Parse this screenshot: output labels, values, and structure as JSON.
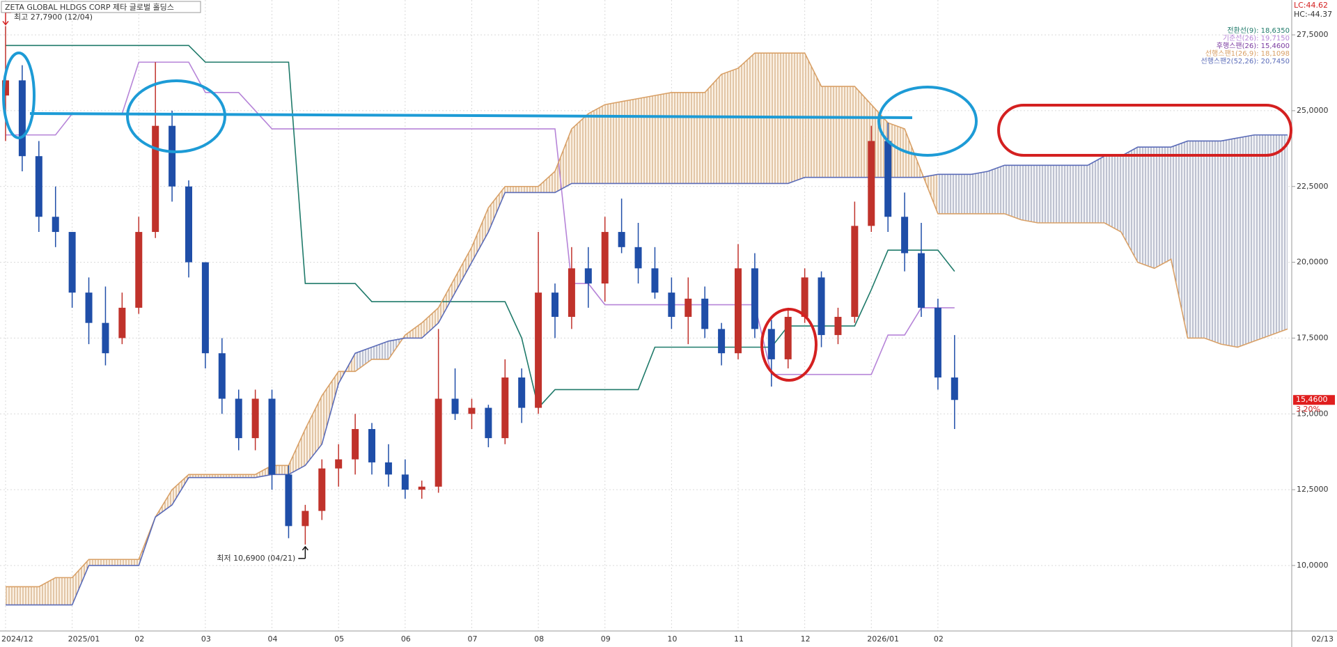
{
  "chart_data": {
    "type": "candlestick",
    "title": "ZETA GLOBAL HLDGS CORP  제타 글로벌 홀딩스",
    "high_label": "최고 27,7900 (12/04)",
    "low_label": "최저 10,6900 (04/21)",
    "lc_label": "LC:44.62",
    "hc_label": "HC:-44.37",
    "lagging_label": "후행스팬(26): 15,4600",
    "last_price": {
      "value": 15.46,
      "label": "15,4600"
    },
    "change_label": "3.20%",
    "up_color": "#c0322b",
    "down_color": "#1f4ea8",
    "grid": true,
    "categories": [
      "2024/12",
      null,
      null,
      null,
      "2025/01",
      null,
      null,
      null,
      "02",
      null,
      null,
      null,
      "03",
      null,
      null,
      null,
      "04",
      null,
      null,
      null,
      "05",
      null,
      null,
      null,
      "06",
      null,
      null,
      null,
      "07",
      null,
      null,
      null,
      "08",
      null,
      null,
      null,
      "09",
      null,
      null,
      null,
      "10",
      null,
      null,
      null,
      "11",
      null,
      null,
      null,
      "12",
      null,
      null,
      null,
      "2026/01",
      null,
      null,
      null,
      "02",
      null,
      null,
      null,
      null,
      null,
      null,
      null,
      null,
      null,
      null,
      null,
      null,
      null,
      null,
      null,
      null,
      null,
      null,
      null,
      null,
      "02/13"
    ],
    "ohlc": {
      "open": [
        25.5,
        26,
        23.5,
        21.5,
        21,
        19,
        18,
        17.5,
        18.5,
        21,
        24.5,
        22.5,
        20,
        17,
        15.5,
        14.2,
        15.5,
        13,
        11.3,
        11.8,
        13.2,
        13.5,
        14.5,
        13.4,
        13,
        12.5,
        12.6,
        15.5,
        15,
        15.2,
        14.2,
        16.2,
        15.2,
        19,
        18.2,
        19.8,
        19.3,
        21,
        20.5,
        19.8,
        19,
        18.2,
        18.8,
        17.8,
        17,
        19.8,
        17.8,
        16.8,
        18.2,
        19.5,
        17.6,
        18.2,
        21.2,
        24,
        21.5,
        20.3,
        18.5,
        16.2,
        null,
        null,
        null,
        null,
        null,
        null,
        null,
        null,
        null,
        null,
        null,
        null,
        null,
        null,
        null,
        null,
        null,
        null,
        null,
        null
      ],
      "high": [
        27.79,
        26.5,
        24,
        22.5,
        21,
        19.5,
        19.2,
        19,
        21.5,
        26.6,
        25,
        22.7,
        20,
        17.5,
        15.8,
        15.8,
        15.8,
        13.3,
        12,
        13.5,
        14,
        15,
        14.7,
        14,
        13.5,
        12.8,
        17.8,
        16.5,
        15.5,
        15.3,
        16.8,
        16.5,
        21,
        19.3,
        20.5,
        20.5,
        21.5,
        22.1,
        21.3,
        20.5,
        19.5,
        19.5,
        19.2,
        18,
        20.6,
        20.3,
        18.1,
        18.5,
        19.8,
        19.7,
        18.5,
        22,
        24.5,
        24.6,
        22.3,
        21.3,
        18.8,
        17.6,
        null,
        null,
        null,
        null,
        null,
        null,
        null,
        null,
        null,
        null,
        null,
        null,
        null,
        null,
        null,
        null,
        null,
        null,
        null,
        null
      ],
      "low": [
        24,
        23,
        21,
        20.5,
        18.5,
        17.3,
        16.6,
        17.3,
        18.3,
        20.8,
        22,
        19.5,
        16.5,
        15,
        13.8,
        13.8,
        12.5,
        10.9,
        10.69,
        11.5,
        12.6,
        13,
        13,
        12.6,
        12.2,
        12.2,
        12.4,
        14.8,
        14.5,
        13.9,
        14,
        14.7,
        15,
        17.5,
        17.8,
        18.5,
        18.7,
        20.3,
        19.3,
        18.8,
        17.8,
        17.3,
        17.5,
        16.6,
        16.8,
        17.5,
        15.9,
        16.5,
        18,
        17.2,
        17.3,
        18,
        21,
        21,
        19.7,
        18.2,
        15.8,
        14.5,
        null,
        null,
        null,
        null,
        null,
        null,
        null,
        null,
        null,
        null,
        null,
        null,
        null,
        null,
        null,
        null,
        null,
        null,
        null,
        null
      ],
      "close": [
        26,
        23.5,
        21.5,
        21,
        19,
        18,
        17,
        18.5,
        21,
        24.5,
        22.5,
        20,
        17,
        15.5,
        14.2,
        15.5,
        13,
        11.3,
        11.8,
        13.2,
        13.5,
        14.5,
        13.4,
        13,
        12.5,
        12.6,
        15.5,
        15,
        15.2,
        14.2,
        16.2,
        15.2,
        19,
        18.2,
        19.8,
        19.3,
        21,
        20.5,
        19.8,
        19,
        18.2,
        18.8,
        17.8,
        17,
        19.8,
        17.8,
        16.8,
        18.2,
        19.5,
        17.6,
        18.2,
        21.2,
        24,
        21.5,
        20.3,
        18.5,
        16.2,
        15.46,
        null,
        null,
        null,
        null,
        null,
        null,
        null,
        null,
        null,
        null,
        null,
        null,
        null,
        null,
        null,
        null,
        null,
        null,
        null,
        null
      ]
    },
    "series": [
      {
        "name": "전환선(9): 18,6350",
        "color": "#b684d8",
        "values": [
          24.2,
          24.2,
          24.2,
          24.2,
          24.9,
          24.9,
          24.9,
          24.9,
          26.6,
          26.6,
          26.6,
          26.6,
          25.6,
          25.6,
          25.6,
          25.0,
          24.4,
          24.4,
          24.4,
          24.4,
          24.4,
          24.4,
          24.4,
          24.4,
          24.4,
          24.4,
          24.4,
          24.4,
          24.4,
          24.4,
          24.4,
          24.4,
          24.4,
          24.4,
          19.3,
          19.3,
          18.6,
          18.6,
          18.6,
          18.6,
          18.6,
          18.6,
          18.6,
          18.6,
          18.6,
          18.6,
          16.3,
          16.3,
          16.3,
          16.3,
          16.3,
          16.3,
          16.3,
          17.6,
          17.6,
          18.5,
          18.5,
          18.5,
          null,
          null,
          null,
          null,
          null,
          null,
          null,
          null,
          null,
          null,
          null,
          null,
          null,
          null,
          null,
          null,
          null,
          null,
          null,
          null
        ]
      },
      {
        "name": "기준선(26): 19,7150",
        "color": "#1f7a6a",
        "values": [
          27.15,
          27.15,
          27.15,
          27.15,
          27.15,
          27.15,
          27.15,
          27.15,
          27.15,
          27.15,
          27.15,
          27.15,
          26.6,
          26.6,
          26.6,
          26.6,
          26.6,
          26.6,
          19.3,
          19.3,
          19.3,
          19.3,
          18.7,
          18.7,
          18.7,
          18.7,
          18.7,
          18.7,
          18.7,
          18.7,
          18.7,
          17.5,
          15.2,
          15.8,
          15.8,
          15.8,
          15.8,
          15.8,
          15.8,
          17.2,
          17.2,
          17.2,
          17.2,
          17.2,
          17.2,
          17.2,
          17.2,
          17.9,
          17.9,
          17.9,
          17.9,
          17.9,
          19.1,
          20.4,
          20.4,
          20.4,
          20.4,
          19.7,
          null,
          null,
          null,
          null,
          null,
          null,
          null,
          null,
          null,
          null,
          null,
          null,
          null,
          null,
          null,
          null,
          null,
          null,
          null,
          null
        ]
      },
      {
        "name": "선행스팬1(26,9): 18,1098",
        "color": "#d9a066",
        "values": [
          9.3,
          9.3,
          9.3,
          9.6,
          9.6,
          10.2,
          10.2,
          10.2,
          10.2,
          11.6,
          12.5,
          13.0,
          13.0,
          13.0,
          13.0,
          13.0,
          13.3,
          13.3,
          14.5,
          15.6,
          16.4,
          16.4,
          16.8,
          16.8,
          17.6,
          18.0,
          18.5,
          19.5,
          20.5,
          21.8,
          22.5,
          22.5,
          22.5,
          23.0,
          24.4,
          24.9,
          25.2,
          25.3,
          25.4,
          25.5,
          25.6,
          25.6,
          25.6,
          26.2,
          26.4,
          26.9,
          26.9,
          26.9,
          26.9,
          25.8,
          25.8,
          25.8,
          25.2,
          24.6,
          24.4,
          23.0,
          21.6,
          21.6,
          21.6,
          21.6,
          21.6,
          21.4,
          21.3,
          21.3,
          21.3,
          21.3,
          21.3,
          21.0,
          20.0,
          19.8,
          20.1,
          17.5,
          17.5,
          17.3,
          17.2,
          17.4,
          17.6,
          17.8
        ]
      },
      {
        "name": "선행스팬2(52,26): 20,7450",
        "color": "#5a6bb8",
        "values": [
          8.7,
          8.7,
          8.7,
          8.7,
          8.7,
          10.0,
          10.0,
          10.0,
          10.0,
          11.6,
          12.0,
          12.9,
          12.9,
          12.9,
          12.9,
          12.9,
          13.0,
          13.0,
          13.3,
          14.0,
          16.0,
          17.0,
          17.2,
          17.4,
          17.5,
          17.5,
          18.0,
          19.0,
          20.0,
          21.0,
          22.3,
          22.3,
          22.3,
          22.3,
          22.6,
          22.6,
          22.6,
          22.6,
          22.6,
          22.6,
          22.6,
          22.6,
          22.6,
          22.6,
          22.6,
          22.6,
          22.6,
          22.6,
          22.8,
          22.8,
          22.8,
          22.8,
          22.8,
          22.8,
          22.8,
          22.8,
          22.9,
          22.9,
          22.9,
          23.0,
          23.2,
          23.2,
          23.2,
          23.2,
          23.2,
          23.2,
          23.5,
          23.5,
          23.8,
          23.8,
          23.8,
          24.0,
          24.0,
          24.0,
          24.1,
          24.2,
          24.2,
          24.2
        ]
      }
    ],
    "ylim": [
      7.84,
      28.65
    ],
    "yticks": [
      {
        "value": 10,
        "label": "10,0000"
      },
      {
        "value": 12.5,
        "label": "12,5000"
      },
      {
        "value": 15,
        "label": "15,0000"
      },
      {
        "value": 17.5,
        "label": "17,5000"
      },
      {
        "value": 20,
        "label": "20,0000"
      },
      {
        "value": 22.5,
        "label": "22,5000"
      },
      {
        "value": 25,
        "label": "25,0000"
      },
      {
        "value": 27.5,
        "label": "27,5000"
      }
    ]
  }
}
